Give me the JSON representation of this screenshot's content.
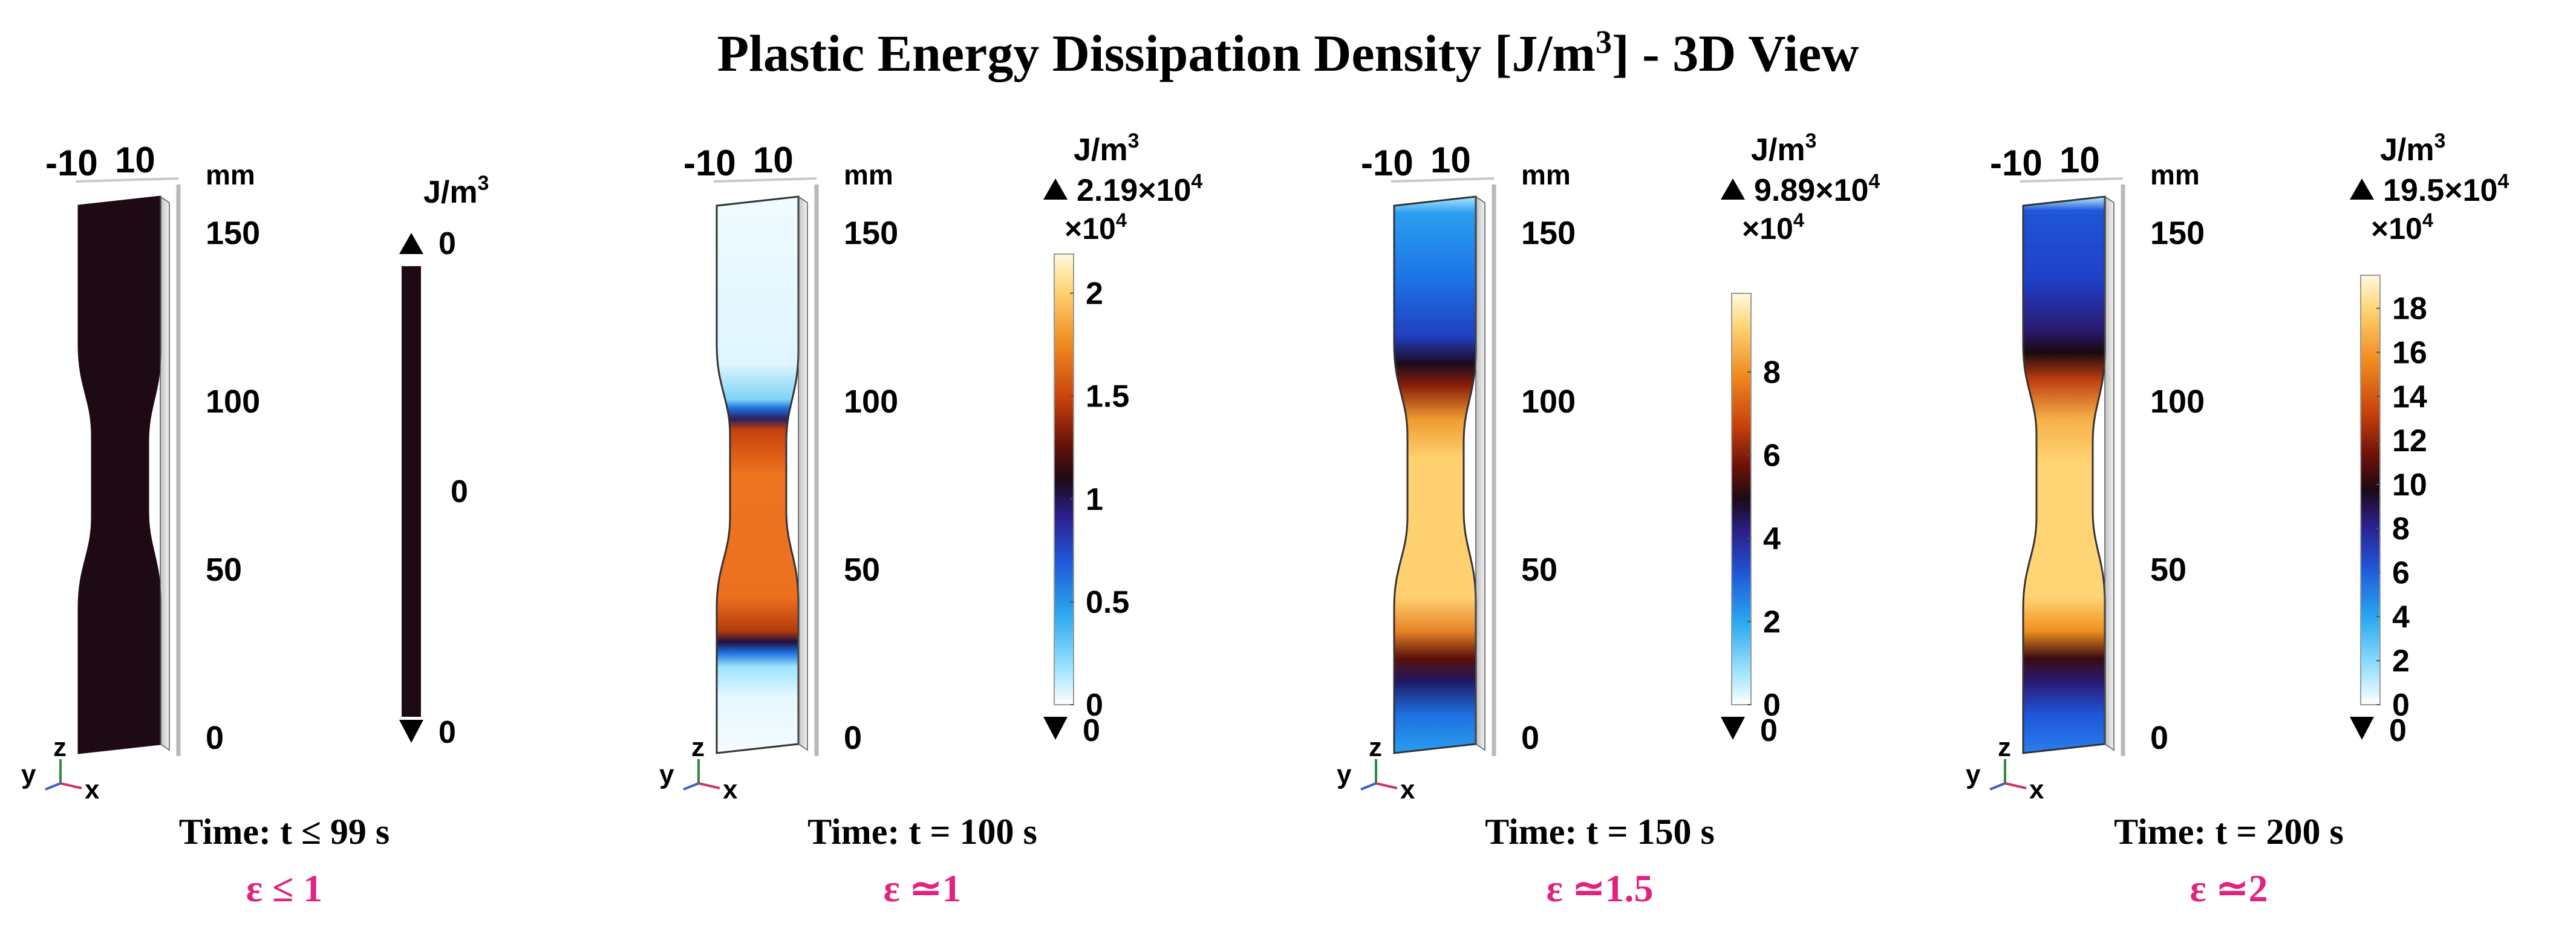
{
  "title": {
    "main": "Plastic Energy Dissipation Density [J/m",
    "sup": "3",
    "tail": "]  - 3D View"
  },
  "axis": {
    "unit": "mm",
    "x_ticks": [
      "-10",
      "10"
    ],
    "z_ticks": [
      "150",
      "100",
      "50",
      "0"
    ],
    "triad": {
      "x": "x",
      "y": "y",
      "z": "z"
    }
  },
  "panels": [
    {
      "time": "Time: t ≤ 99 s",
      "strain": "ε ≤ 1",
      "legend": {
        "unit": "J/m",
        "unit_sup": "3",
        "max_label": "0",
        "min_label": "0",
        "multiplier": "",
        "ticks": [
          "0"
        ]
      }
    },
    {
      "time": "Time: t = 100 s",
      "strain": "ε ≃1",
      "legend": {
        "unit": "J/m",
        "unit_sup": "3",
        "max_label": "2.19×10",
        "max_sup": "4",
        "multiplier": "×10",
        "multiplier_sup": "4",
        "min_label": "0",
        "ticks": [
          "2",
          "1.5",
          "1",
          "0.5",
          "0"
        ]
      }
    },
    {
      "time": "Time: t = 150 s",
      "strain": "ε ≃1.5",
      "legend": {
        "unit": "J/m",
        "unit_sup": "3",
        "max_label": "9.89×10",
        "max_sup": "4",
        "multiplier": "×10",
        "multiplier_sup": "4",
        "min_label": "0",
        "ticks": [
          "8",
          "6",
          "4",
          "2",
          "0"
        ]
      }
    },
    {
      "time": "Time: t = 200 s",
      "strain": "ε ≃2",
      "legend": {
        "unit": "J/m",
        "unit_sup": "3",
        "max_label": "19.5×10",
        "max_sup": "4",
        "multiplier": "×10",
        "multiplier_sup": "4",
        "min_label": "0",
        "ticks": [
          "18",
          "16",
          "14",
          "12",
          "10",
          "8",
          "6",
          "4",
          "2",
          "0"
        ]
      }
    }
  ],
  "colors": {
    "strain_text": "#e0237f",
    "colormap": [
      "#ffffff",
      "#9ee3ff",
      "#2aa9f0",
      "#1f56d8",
      "#2b1f8a",
      "#1c0a14",
      "#6b1208",
      "#c8420c",
      "#f08a1e",
      "#ffd474",
      "#fffae0"
    ],
    "specimen_zero": "#1e0a14"
  }
}
